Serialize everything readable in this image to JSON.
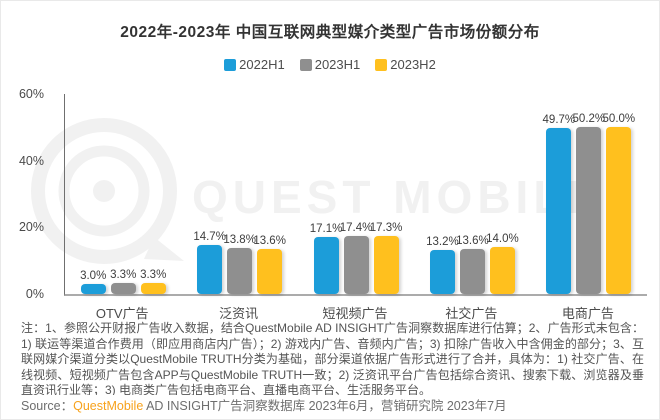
{
  "title": "2022年-2023年 中国互联网典型媒介类型广告市场份额分布",
  "watermark_text": "QUEST MOBILE",
  "chart_data": {
    "type": "bar",
    "title": "2022年-2023年 中国互联网典型媒介类型广告市场份额分布",
    "categories": [
      "OTV广告",
      "泛资讯",
      "短视频广告",
      "社交广告",
      "电商广告"
    ],
    "series": [
      {
        "name": "2022H1",
        "color": "#1C9DD9",
        "values": [
          3.0,
          14.7,
          17.1,
          13.2,
          49.7
        ],
        "labels": [
          "3.0%",
          "14.7%",
          "17.1%",
          "13.2%",
          "49.7%"
        ]
      },
      {
        "name": "2023H1",
        "color": "#8F8F8F",
        "values": [
          3.3,
          13.8,
          17.4,
          13.6,
          50.2
        ],
        "labels": [
          "3.3%",
          "13.8%",
          "17.4%",
          "13.6%",
          "50.2%"
        ]
      },
      {
        "name": "2023H2",
        "color": "#FFC01E",
        "values": [
          3.3,
          13.6,
          17.3,
          14.0,
          50.0
        ],
        "labels": [
          "3.3%",
          "13.6%",
          "17.3%",
          "14.0%",
          "50.0%"
        ]
      }
    ],
    "xlabel": "",
    "ylabel": "",
    "ylim": [
      0,
      60
    ],
    "y_ticks": [
      {
        "label": "60%",
        "value": 60
      },
      {
        "label": "40%",
        "value": 40
      },
      {
        "label": "20%",
        "value": 20
      },
      {
        "label": "0%",
        "value": 0
      }
    ],
    "grid": false,
    "legend_position": "top",
    "bar_value_labels_shown": true
  },
  "note": "注：1、参照公开财报广告收入数据，结合QuestMobile AD INSIGHT广告洞察数据库进行估算；2、广告形式未包含：1) 联运等渠道合作费用（即应用商店内广告）；2) 游戏内广告、音频内广告；3) 扣除广告收入中含佣金的部分；3、互联网媒介渠道分类以QuestMobile TRUTH分类为基础，部分渠道依据广告形式进行了合并，具体为：1) 社交广告、在线视频、短视频广告包含APP与QuestMobile TRUTH一致；2) 泛资讯平台广告包括综合资讯、搜索下载、浏览器及垂直资讯行业等；3) 电商类广告包括电商平台、直播电商平台、生活服务平台。",
  "source": {
    "prefix": "Source：",
    "brand": "QuestMobile",
    "rest": " AD INSIGHT广告洞察数据库 2023年6月，营销研究院 2023年7月"
  },
  "colors": {
    "series_blue": "#1C9DD9",
    "series_gray": "#8F8F8F",
    "series_yellow": "#FFC01E",
    "brand_orange": "#F7A21C",
    "watermark_gray": "#F1F1F1"
  }
}
